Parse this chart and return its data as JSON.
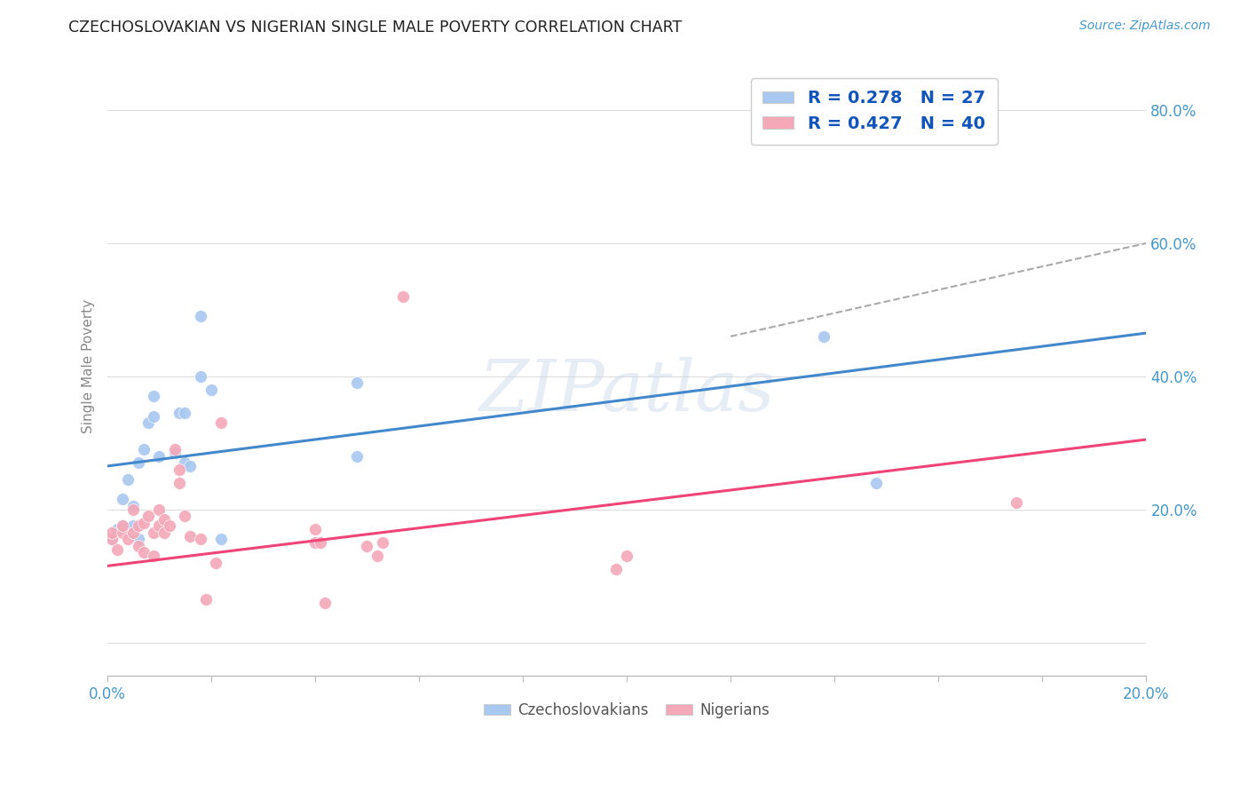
{
  "title": "CZECHOSLOVAKIAN VS NIGERIAN SINGLE MALE POVERTY CORRELATION CHART",
  "source": "Source: ZipAtlas.com",
  "ylabel": "Single Male Poverty",
  "xlim": [
    0.0,
    0.2
  ],
  "ylim": [
    -0.05,
    0.88
  ],
  "ytick_values": [
    0.0,
    0.2,
    0.4,
    0.6,
    0.8
  ],
  "xtick_values": [
    0.0,
    0.02,
    0.04,
    0.06,
    0.08,
    0.1,
    0.12,
    0.14,
    0.16,
    0.18,
    0.2
  ],
  "xtick_labels": [
    "0.0%",
    "",
    "",
    "",
    "",
    "",
    "",
    "",
    "",
    "",
    "20.0%"
  ],
  "ytick_labels_right": [
    "",
    "20.0%",
    "40.0%",
    "60.0%",
    "80.0%"
  ],
  "blue_color": "#A8C8F0",
  "pink_color": "#F4A8B8",
  "trend_blue": "#4488CC",
  "trend_pink": "#EE4477",
  "trend_dashed_color": "#AAAAAA",
  "background": "#FFFFFF",
  "grid_color": "#DDDDDD",
  "legend_R1": "R = 0.278",
  "legend_N1": "N = 27",
  "legend_R2": "R = 0.427",
  "legend_N2": "N = 40",
  "blue_points_x": [
    0.001,
    0.002,
    0.003,
    0.003,
    0.004,
    0.005,
    0.005,
    0.006,
    0.006,
    0.007,
    0.008,
    0.009,
    0.009,
    0.01,
    0.013,
    0.014,
    0.015,
    0.015,
    0.016,
    0.018,
    0.018,
    0.02,
    0.022,
    0.048,
    0.048,
    0.138,
    0.148
  ],
  "blue_points_y": [
    0.155,
    0.17,
    0.175,
    0.215,
    0.245,
    0.175,
    0.205,
    0.155,
    0.27,
    0.29,
    0.33,
    0.34,
    0.37,
    0.28,
    0.285,
    0.345,
    0.27,
    0.345,
    0.265,
    0.4,
    0.49,
    0.38,
    0.155,
    0.39,
    0.28,
    0.46,
    0.24
  ],
  "pink_points_x": [
    0.001,
    0.001,
    0.002,
    0.003,
    0.003,
    0.004,
    0.005,
    0.005,
    0.006,
    0.006,
    0.007,
    0.007,
    0.008,
    0.009,
    0.009,
    0.01,
    0.01,
    0.011,
    0.011,
    0.012,
    0.013,
    0.014,
    0.014,
    0.015,
    0.016,
    0.018,
    0.019,
    0.021,
    0.022,
    0.04,
    0.04,
    0.041,
    0.042,
    0.05,
    0.052,
    0.053,
    0.057,
    0.098,
    0.1,
    0.175
  ],
  "pink_points_y": [
    0.155,
    0.165,
    0.14,
    0.165,
    0.175,
    0.155,
    0.2,
    0.165,
    0.145,
    0.175,
    0.135,
    0.18,
    0.19,
    0.13,
    0.165,
    0.175,
    0.2,
    0.165,
    0.185,
    0.175,
    0.29,
    0.24,
    0.26,
    0.19,
    0.16,
    0.155,
    0.065,
    0.12,
    0.33,
    0.15,
    0.17,
    0.15,
    0.06,
    0.145,
    0.13,
    0.15,
    0.52,
    0.11,
    0.13,
    0.21
  ],
  "blue_trend_x": [
    0.0,
    0.2
  ],
  "blue_trend_y": [
    0.265,
    0.465
  ],
  "pink_trend_x": [
    0.0,
    0.2
  ],
  "pink_trend_y": [
    0.115,
    0.305
  ],
  "dashed_trend_x": [
    0.12,
    0.2
  ],
  "dashed_trend_y": [
    0.46,
    0.6
  ],
  "watermark_text": "ZIPatlas",
  "marker_size": 100,
  "title_color": "#222222",
  "source_color": "#4499CC",
  "tick_color": "#4499CC",
  "ylabel_color": "#888888"
}
